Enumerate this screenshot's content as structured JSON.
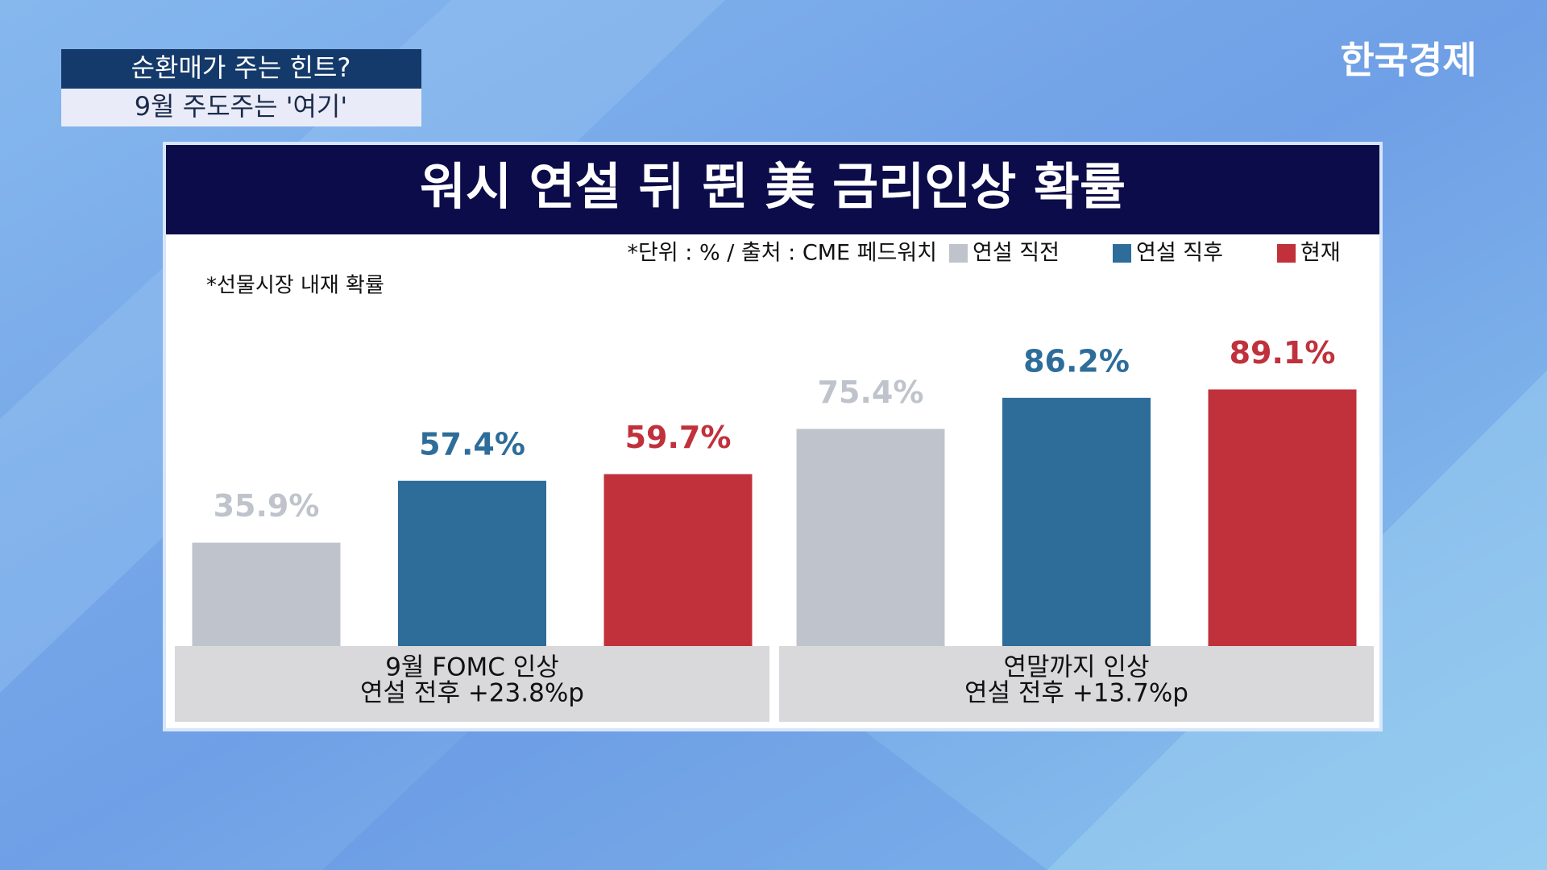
{
  "broadcast": {
    "caption_top": "순환매가 주는 힌트?",
    "caption_bottom": "9월 주도주는 '여기'",
    "logo": "한국경제"
  },
  "chart_data": {
    "type": "bar",
    "title": "워시 연설 뒤 뛴 美 금리인상 확률",
    "note": "*단위 : % / 출처 : CME 페드워치",
    "subnote": "*선물시장 내재 확률",
    "categories": [
      "9월 FOMC 인상",
      "연말까지 인상"
    ],
    "category_notes": [
      "연설 전후  +23.8%p",
      "연설 전후  +13.7%p"
    ],
    "series": [
      {
        "name": "연설 직전",
        "color": "#bfc4cc",
        "values": [
          35.9,
          75.4
        ],
        "value_labels": [
          "35.9%",
          "75.4%"
        ]
      },
      {
        "name": "연설 직후",
        "color": "#2e6d9a",
        "values": [
          57.4,
          86.2
        ],
        "value_labels": [
          "57.4%",
          "86.2%"
        ]
      },
      {
        "name": "현재",
        "color": "#c0313b",
        "values": [
          59.7,
          89.1
        ],
        "value_labels": [
          "59.7%",
          "89.1%"
        ]
      }
    ]
  }
}
